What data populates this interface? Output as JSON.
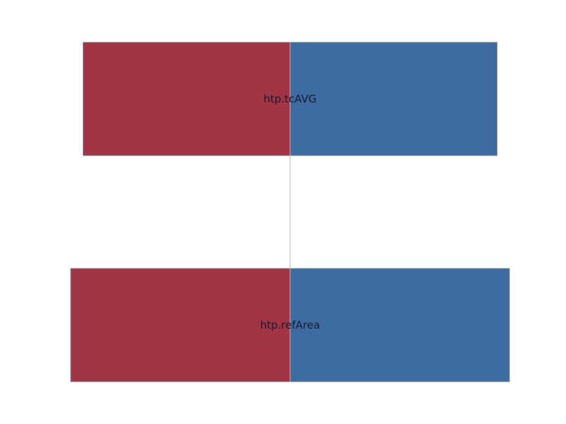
{
  "chart_data": {
    "type": "bar",
    "orientation": "horizontal",
    "diverging": true,
    "categories": [
      "htp.tcAVG",
      "htp.refArea"
    ],
    "series": [
      {
        "values": [
          -0.5,
          -0.53
        ],
        "color": "#a23446"
      },
      {
        "values": [
          0.5,
          0.53
        ],
        "color": "#3d6ca3"
      }
    ],
    "xlim": [
      -0.53,
      0.53
    ],
    "center_line": 0,
    "grid": false,
    "legend": "none",
    "title": "",
    "xlabel": "",
    "ylabel": ""
  }
}
